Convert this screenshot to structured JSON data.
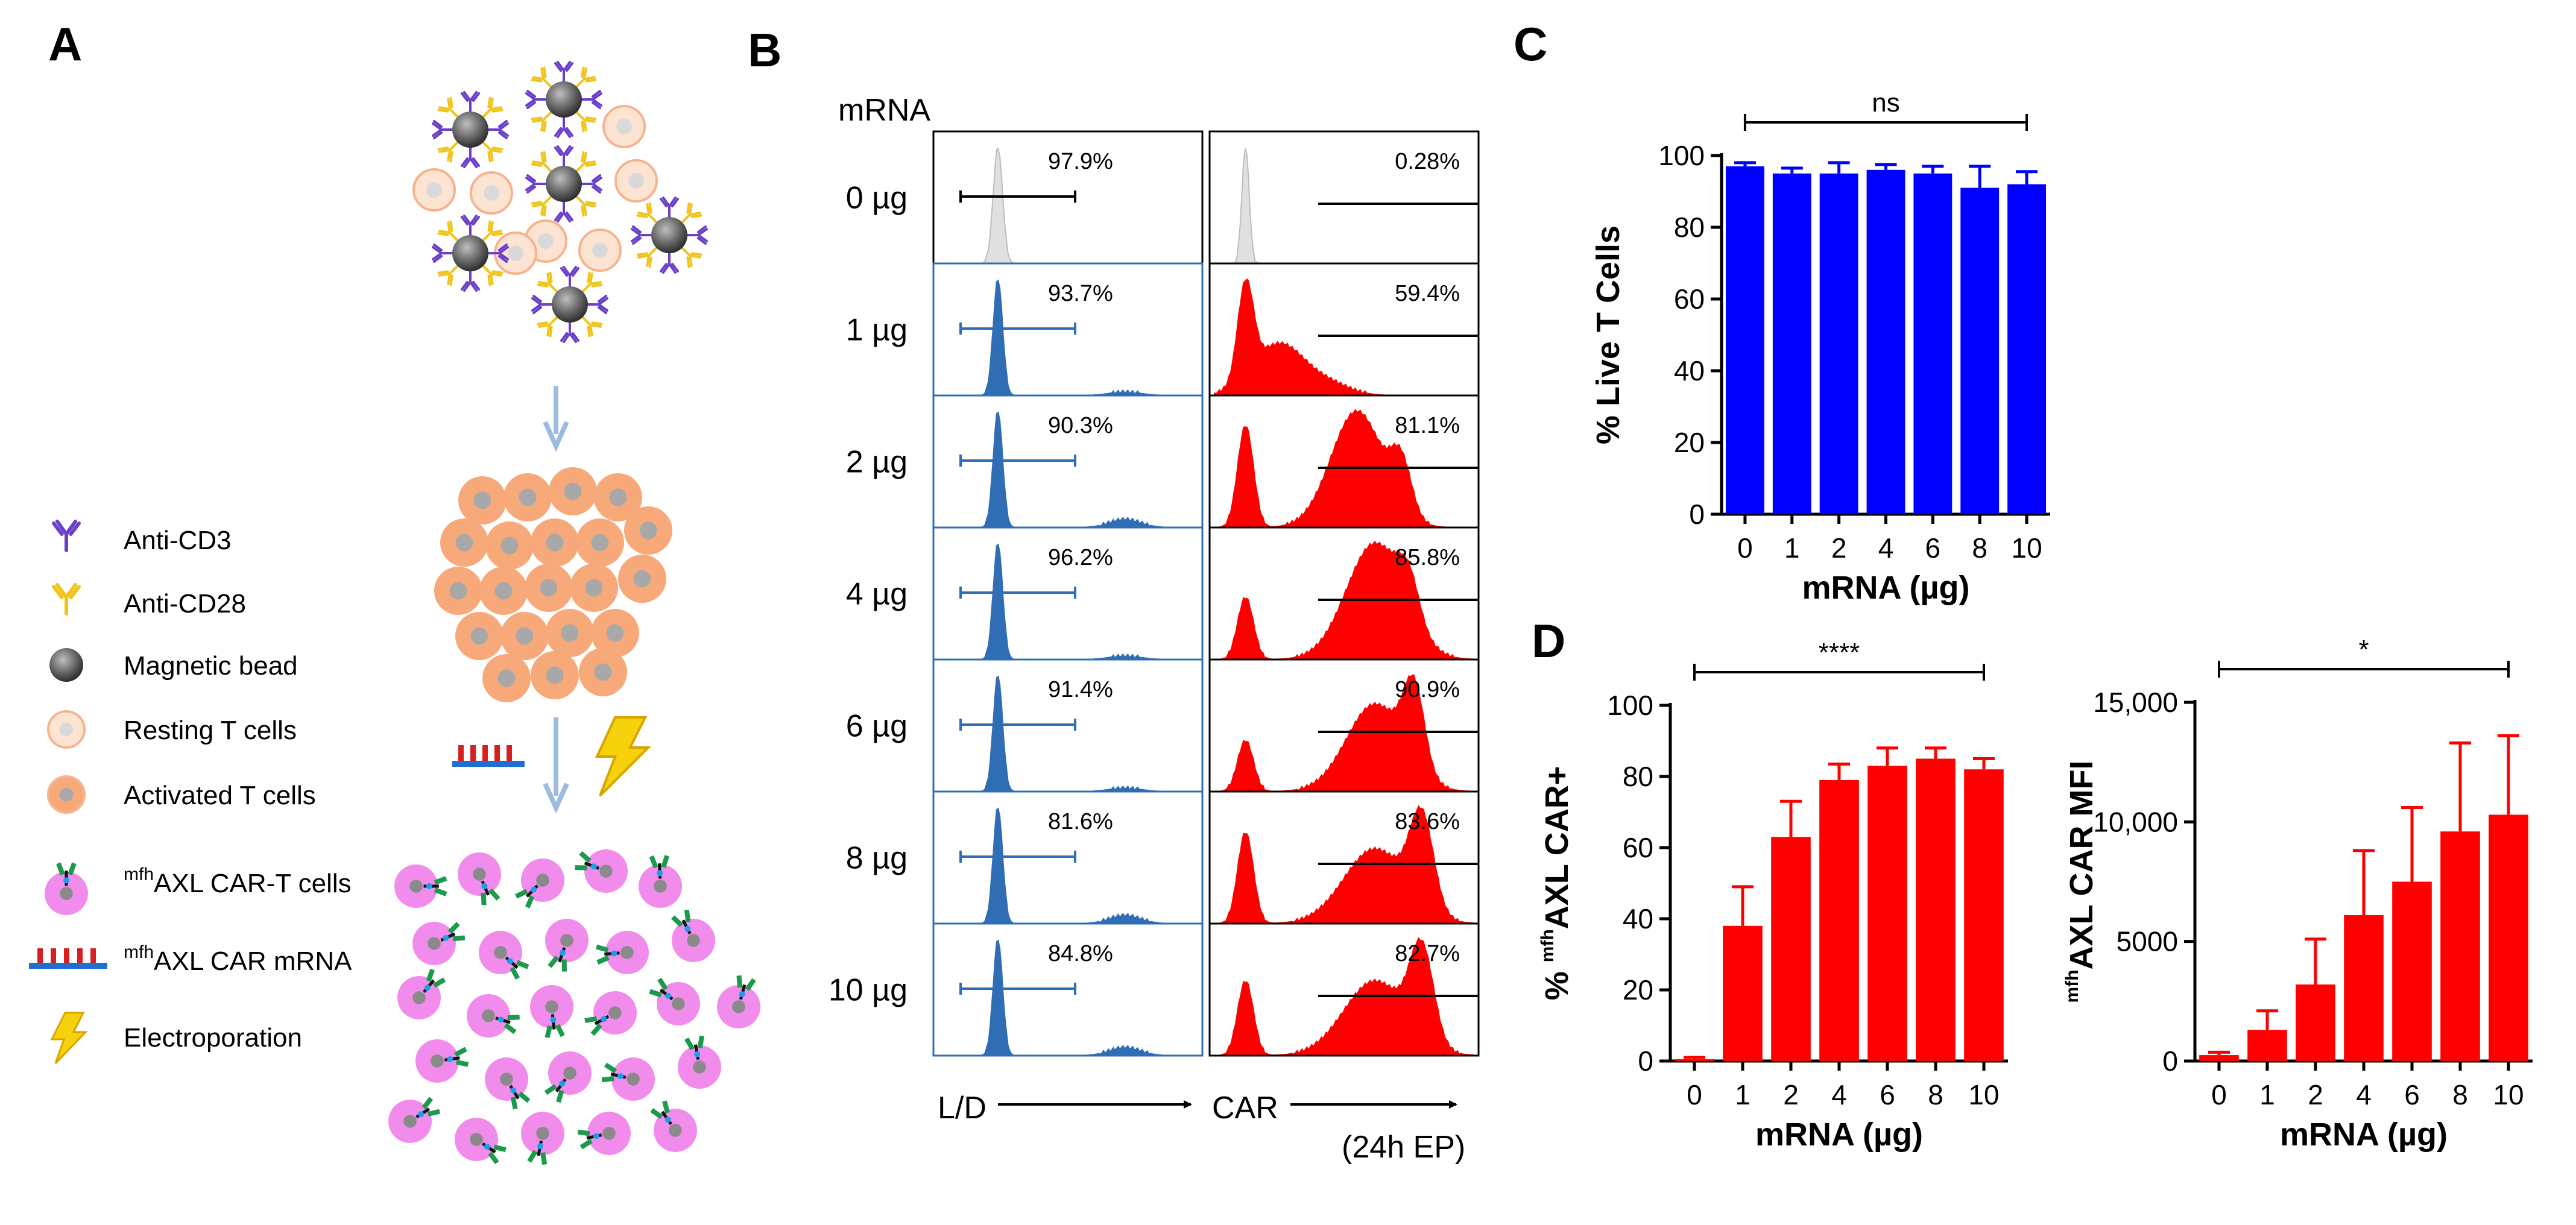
{
  "figure": {
    "panels": {
      "A": "A",
      "B": "B",
      "C": "C",
      "D": "D"
    }
  },
  "panelA": {
    "legend": [
      {
        "icon": "antibody-icon",
        "color": "#6a3fc9",
        "label": "Anti-CD3"
      },
      {
        "icon": "antibody-icon",
        "color": "#f0c419",
        "label": "Anti-CD28"
      },
      {
        "icon": "bead-icon",
        "color": "#555555",
        "label": "Magnetic bead"
      },
      {
        "icon": "cell-icon",
        "color": "#fde3d2",
        "label": "Resting T cells"
      },
      {
        "icon": "cell-icon",
        "color": "#f7a97a",
        "label": "Activated T cells"
      },
      {
        "icon": "car-cell-icon",
        "color": "#f28cec",
        "label_sup": "mfh",
        "label": "AXL CAR-T cells"
      },
      {
        "icon": "mrna-icon",
        "color": "#d62020",
        "label_sup": "mfh",
        "label": "AXL CAR mRNA"
      },
      {
        "icon": "lightning-icon",
        "color": "#f5d20c",
        "label": "Electroporation"
      }
    ]
  },
  "panelB": {
    "mrna_header": "mRNA",
    "rows": [
      {
        "dose": "0 µg",
        "ld_pct": "97.9%",
        "car_pct": "0.28%"
      },
      {
        "dose": "1 µg",
        "ld_pct": "93.7%",
        "car_pct": "59.4%"
      },
      {
        "dose": "2 µg",
        "ld_pct": "90.3%",
        "car_pct": "81.1%"
      },
      {
        "dose": "4 µg",
        "ld_pct": "96.2%",
        "car_pct": "85.8%"
      },
      {
        "dose": "6 µg",
        "ld_pct": "91.4%",
        "car_pct": "90.9%"
      },
      {
        "dose": "8 µg",
        "ld_pct": "81.6%",
        "car_pct": "83.6%"
      },
      {
        "dose": "10 µg",
        "ld_pct": "84.8%",
        "car_pct": "82.7%"
      }
    ],
    "x_label_left": "L/D",
    "x_label_right": "CAR",
    "footnote": "(24h EP)",
    "colors": {
      "control": "#e0e0e0",
      "ld": "#2f6db5",
      "car": "#ff0000"
    }
  },
  "chart_data": [
    {
      "id": "C",
      "type": "bar",
      "categories": [
        "0",
        "1",
        "2",
        "4",
        "6",
        "8",
        "10"
      ],
      "values": [
        97,
        95,
        95,
        96,
        95,
        91,
        92
      ],
      "errors": [
        1,
        1.5,
        3,
        1.5,
        2,
        6,
        3.5
      ],
      "color": "#0000ff",
      "xlabel": "mRNA (µg)",
      "ylabel": "% Live T Cells",
      "ylim": [
        0,
        100
      ],
      "yticks": [
        0,
        20,
        40,
        60,
        80,
        100
      ],
      "ytick_labels": [
        "0",
        "20",
        "40",
        "60",
        "80",
        "100"
      ],
      "significance": "ns"
    },
    {
      "id": "D1",
      "type": "bar",
      "categories": [
        "0",
        "1",
        "2",
        "4",
        "6",
        "8",
        "10"
      ],
      "values": [
        0.5,
        38,
        63,
        79,
        83,
        85,
        82
      ],
      "errors": [
        0.5,
        11,
        10,
        4.5,
        5,
        3,
        3
      ],
      "color": "#ff0000",
      "xlabel": "mRNA (µg)",
      "ylabel_prefix": "% ",
      "ylabel_sup": "mfh",
      "ylabel": "AXL CAR+",
      "ylim": [
        0,
        100
      ],
      "yticks": [
        0,
        20,
        40,
        60,
        80,
        100
      ],
      "ytick_labels": [
        "0",
        "20",
        "40",
        "60",
        "80",
        "100"
      ],
      "significance": "****"
    },
    {
      "id": "D2",
      "type": "bar",
      "categories": [
        "0",
        "1",
        "2",
        "4",
        "6",
        "8",
        "10"
      ],
      "values": [
        250,
        1300,
        3200,
        6100,
        7500,
        9600,
        10300
      ],
      "errors": [
        120,
        800,
        1900,
        2700,
        3100,
        3700,
        3300
      ],
      "color": "#ff0000",
      "xlabel": "mRNA (µg)",
      "ylabel_sup": "mfh",
      "ylabel": "AXL CAR MFI",
      "ylim": [
        0,
        15000
      ],
      "yticks": [
        0,
        5000,
        10000,
        15000
      ],
      "ytick_labels": [
        "0",
        "5000",
        "10,000",
        "15,000"
      ],
      "significance": "*"
    }
  ]
}
